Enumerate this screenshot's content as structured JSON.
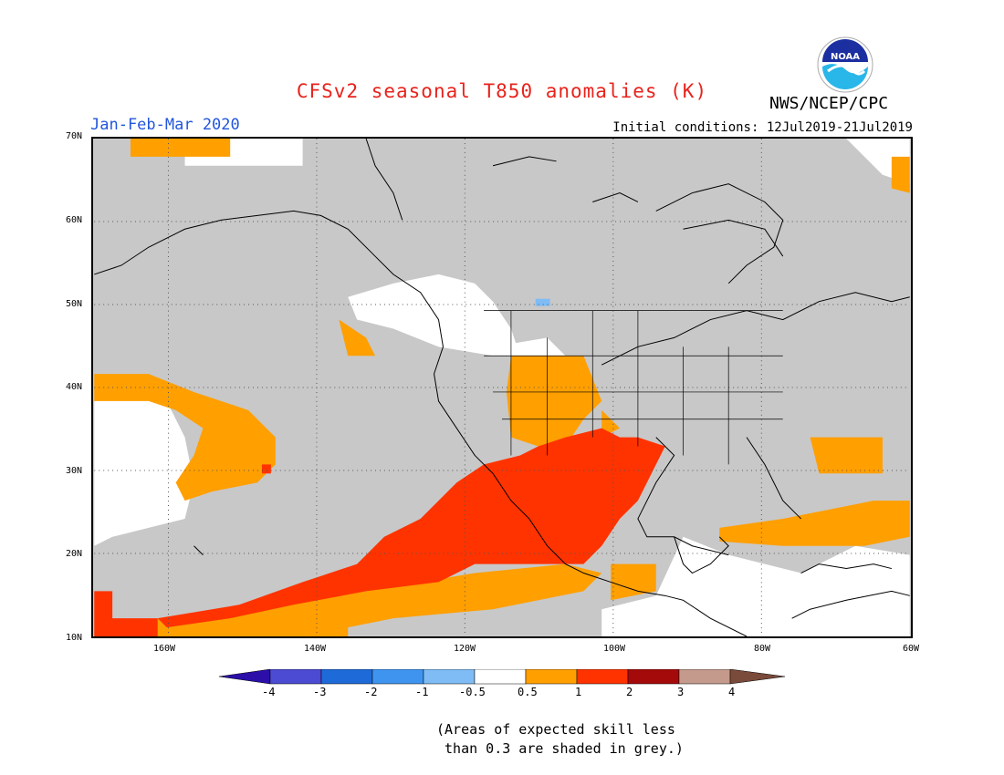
{
  "header": {
    "title": "CFSv2 seasonal T850 anomalies (K)",
    "period": "Jan-Feb-Mar 2020",
    "agency": "NWS/NCEP/CPC",
    "initial_conditions": "Initial conditions: 12Jul2019-21Jul2019",
    "logo_text": "NOAA"
  },
  "axes": {
    "lat_labels": [
      "70N",
      "60N",
      "50N",
      "40N",
      "30N",
      "20N",
      "10N"
    ],
    "lon_labels": [
      "160W",
      "140W",
      "120W",
      "100W",
      "80W",
      "60W"
    ]
  },
  "colorbar": {
    "labels": [
      "-4",
      "-3",
      "-2",
      "-1",
      "-0.5",
      "0.5",
      "1",
      "2",
      "3",
      "4"
    ],
    "colors": [
      "#2b0fa8",
      "#4b4bd3",
      "#1e6ad8",
      "#3f94f0",
      "#7fbcf5",
      "#ffffff",
      "#ff9f00",
      "#ff3300",
      "#a50a0a",
      "#c49a8c",
      "#7a4a3a"
    ]
  },
  "note": {
    "line1": "(Areas of expected skill less",
    "line2": " than 0.3 are shaded in grey.)"
  },
  "colors": {
    "skill_grey": "#c8c8c8",
    "neutral": "#ffffff",
    "orange": "#ff9f00",
    "red": "#ff3300",
    "light_blue": "#7fbcf5"
  }
}
